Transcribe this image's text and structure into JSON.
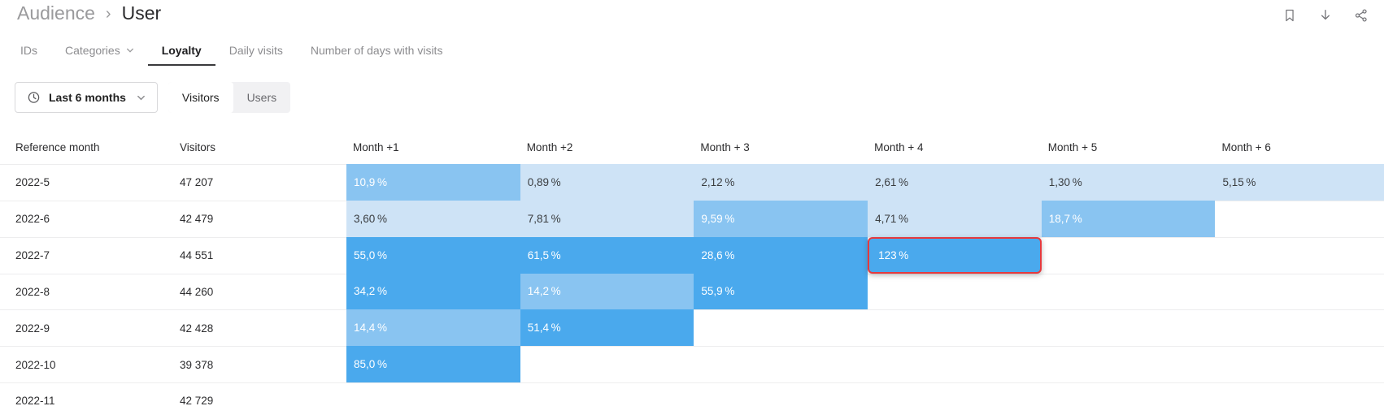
{
  "breadcrumb": {
    "section": "Audience",
    "separator": "›",
    "page": "User"
  },
  "header_actions": [
    {
      "name": "bookmark"
    },
    {
      "name": "download"
    },
    {
      "name": "share"
    }
  ],
  "tabs": [
    {
      "label": "IDs",
      "active": false,
      "has_dropdown": false
    },
    {
      "label": "Categories",
      "active": false,
      "has_dropdown": true
    },
    {
      "label": "Loyalty",
      "active": true,
      "has_dropdown": false
    },
    {
      "label": "Daily visits",
      "active": false,
      "has_dropdown": false
    },
    {
      "label": "Number of days with visits",
      "active": false,
      "has_dropdown": false
    }
  ],
  "filters": {
    "period": {
      "icon": "clock",
      "label": "Last 6 months"
    },
    "audience_toggle": [
      {
        "label": "Visitors",
        "active": true
      },
      {
        "label": "Users",
        "active": false
      }
    ]
  },
  "table": {
    "columns": [
      "Reference month",
      "Visitors",
      "Month +1",
      "Month +2",
      "Month + 3",
      "Month + 4",
      "Month + 5",
      "Month + 6"
    ],
    "rows": [
      {
        "month": "2022-5",
        "visitors": "47 207",
        "cells": [
          {
            "value": "10,9 %",
            "level": "medium"
          },
          {
            "value": "0,89 %",
            "level": "light"
          },
          {
            "value": "2,12 %",
            "level": "light"
          },
          {
            "value": "2,61 %",
            "level": "light"
          },
          {
            "value": "1,30 %",
            "level": "light"
          },
          {
            "value": "5,15 %",
            "level": "light"
          }
        ]
      },
      {
        "month": "2022-6",
        "visitors": "42 479",
        "cells": [
          {
            "value": "3,60 %",
            "level": "light"
          },
          {
            "value": "7,81 %",
            "level": "light"
          },
          {
            "value": "9,59 %",
            "level": "medium"
          },
          {
            "value": "4,71 %",
            "level": "light"
          },
          {
            "value": "18,7 %",
            "level": "medium"
          }
        ]
      },
      {
        "month": "2022-7",
        "visitors": "44 551",
        "cells": [
          {
            "value": "55,0 %",
            "level": "dark"
          },
          {
            "value": "61,5 %",
            "level": "dark"
          },
          {
            "value": "28,6 %",
            "level": "dark"
          },
          {
            "value": "123 %",
            "level": "dark",
            "selected": true
          }
        ]
      },
      {
        "month": "2022-8",
        "visitors": "44 260",
        "cells": [
          {
            "value": "34,2 %",
            "level": "dark"
          },
          {
            "value": "14,2 %",
            "level": "medium"
          },
          {
            "value": "55,9 %",
            "level": "dark"
          }
        ]
      },
      {
        "month": "2022-9",
        "visitors": "42 428",
        "cells": [
          {
            "value": "14,4 %",
            "level": "medium"
          },
          {
            "value": "51,4 %",
            "level": "dark"
          }
        ]
      },
      {
        "month": "2022-10",
        "visitors": "39 378",
        "cells": [
          {
            "value": "85,0 %",
            "level": "dark"
          }
        ]
      },
      {
        "month": "2022-11",
        "visitors": "42 729",
        "cells": []
      }
    ]
  },
  "colors": {
    "cell_light": "#cee3f6",
    "cell_medium": "#89c4f1",
    "cell_dark": "#4aa9ed",
    "selection_border": "#e5393e",
    "tab_active_underline": "#3a3a3c"
  }
}
